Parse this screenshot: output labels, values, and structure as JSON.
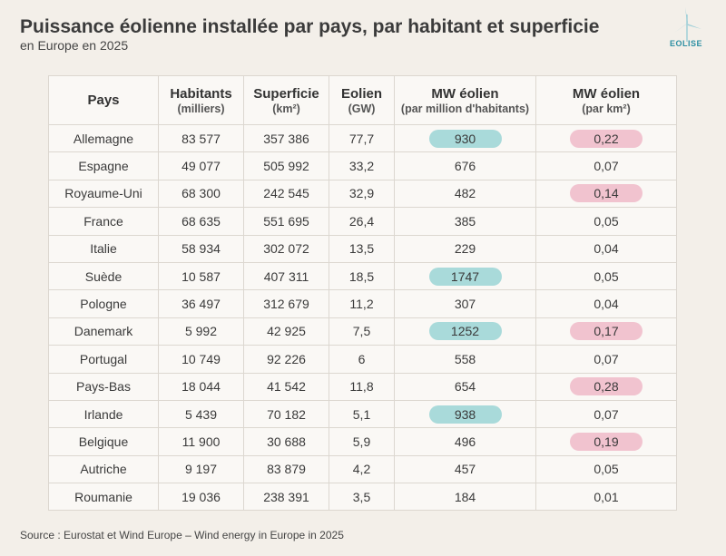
{
  "header": {
    "title": "Puissance éolienne installée par pays, par habitant et superficie",
    "subtitle": "en Europe en 2025",
    "logo": "EOLISE"
  },
  "table": {
    "columns": [
      {
        "name": "Pays"
      },
      {
        "name": "Habitants",
        "unit": "(milliers)"
      },
      {
        "name": "Superficie",
        "unit": "(km²)"
      },
      {
        "name": "Eolien",
        "unit": "(GW)"
      },
      {
        "name": "MW éolien",
        "unit": "(par million d'habitants)"
      },
      {
        "name": "MW éolien",
        "unit": "(par km²)"
      }
    ],
    "rows": [
      [
        "Allemagne",
        "83 577",
        "357 386",
        "77,7",
        "930",
        "0,22"
      ],
      [
        "Espagne",
        "49 077",
        "505 992",
        "33,2",
        "676",
        "0,07"
      ],
      [
        "Royaume-Uni",
        "68 300",
        "242 545",
        "32,9",
        "482",
        "0,14"
      ],
      [
        "France",
        "68 635",
        "551 695",
        "26,4",
        "385",
        "0,05"
      ],
      [
        "Italie",
        "58 934",
        "302 072",
        "13,5",
        "229",
        "0,04"
      ],
      [
        "Suède",
        "10 587",
        "407 311",
        "18,5",
        "1747",
        "0,05"
      ],
      [
        "Pologne",
        "36 497",
        "312 679",
        "11,2",
        "307",
        "0,04"
      ],
      [
        "Danemark",
        "5 992",
        "42 925",
        "7,5",
        "1252",
        "0,17"
      ],
      [
        "Portugal",
        "10 749",
        "92 226",
        "6",
        "558",
        "0,07"
      ],
      [
        "Pays-Bas",
        "18 044",
        "41 542",
        "11,8",
        "654",
        "0,28"
      ],
      [
        "Irlande",
        "5 439",
        "70 182",
        "5,1",
        "938",
        "0,07"
      ],
      [
        "Belgique",
        "11 900",
        "30 688",
        "5,9",
        "496",
        "0,19"
      ],
      [
        "Autriche",
        "9 197",
        "83 879",
        "4,2",
        "457",
        "0,05"
      ],
      [
        "Roumanie",
        "19 036",
        "238 391",
        "3,5",
        "184",
        "0,01"
      ]
    ],
    "highlights": [
      {
        "column": 4,
        "color": "#a9dada",
        "rows": [
          0,
          5,
          7,
          10
        ]
      },
      {
        "column": 5,
        "color": "#f1c3cf",
        "rows": [
          0,
          2,
          7,
          9,
          11
        ]
      }
    ]
  },
  "source": "Source : Eurostat et Wind Europe – Wind energy in Europe in 2025"
}
